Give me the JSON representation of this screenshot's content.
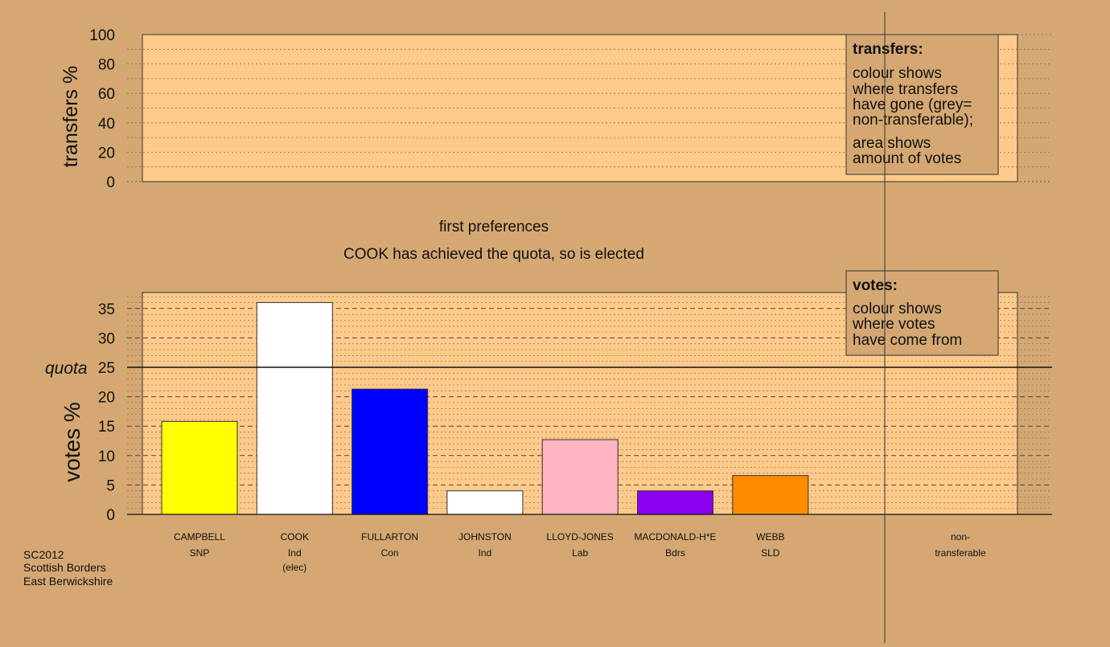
{
  "colors": {
    "background": "#d5a873",
    "panel": "#fdca8b",
    "nontransferable": "#999999"
  },
  "top_panel": {
    "ylabel": "transfers %",
    "yticks": [
      "0",
      "20",
      "40",
      "60",
      "80",
      "100"
    ],
    "legend": {
      "title": "transfers:",
      "lines1": [
        "colour shows",
        "where transfers",
        "have gone (grey=",
        "non-transferable);"
      ],
      "lines2": [
        "area shows",
        "amount of votes"
      ]
    }
  },
  "middle": {
    "stage_title": "first preferences",
    "status": "COOK has achieved the quota, so is elected"
  },
  "bottom_panel": {
    "ylabel": "votes %",
    "quota_label": "quota",
    "yticks": [
      "0",
      "5",
      "10",
      "15",
      "20",
      "25",
      "30",
      "35"
    ],
    "legend": {
      "title": "votes:",
      "lines": [
        "colour shows",
        "where votes",
        "have come from"
      ]
    }
  },
  "footer": {
    "lines": [
      "SC2012",
      "Scottish Borders",
      "East Berwickshire"
    ]
  },
  "chart_data": [
    {
      "type": "bar",
      "ylabel": "transfers %",
      "ylim": [
        0,
        100
      ],
      "categories": [
        "CAMPBELL",
        "COOK",
        "FULLARTON",
        "JOHNSTON",
        "LLOYD-JONES",
        "MACDONALD-H*E",
        "WEBB",
        "non-transferable"
      ],
      "values": [
        0,
        0,
        0,
        0,
        0,
        0,
        0,
        0
      ]
    },
    {
      "type": "bar",
      "ylabel": "votes %",
      "ylim": [
        0,
        38
      ],
      "quota": 25,
      "categories": [
        "CAMPBELL",
        "COOK",
        "FULLARTON",
        "JOHNSTON",
        "LLOYD-JONES",
        "MACDONALD-H*E",
        "WEBB"
      ],
      "parties": [
        "SNP",
        "Ind",
        "Con",
        "Ind",
        "Lab",
        "Bdrs",
        "SLD"
      ],
      "notes": [
        "",
        "(elec)",
        "",
        "",
        "",
        "",
        ""
      ],
      "values": [
        15.8,
        36.0,
        21.3,
        4.0,
        12.7,
        4.0,
        6.6
      ],
      "bar_colors": [
        "#ffff00",
        "#ffffff",
        "#0000ff",
        "#ffffff",
        "#ffb3c3",
        "#8b00f0",
        "#ff8c00"
      ],
      "extra_category": [
        "non-",
        "transferable"
      ]
    }
  ]
}
